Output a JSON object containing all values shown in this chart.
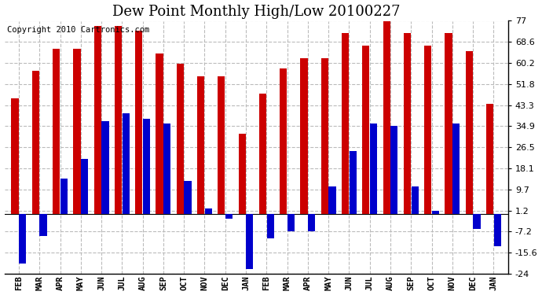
{
  "title": "Dew Point Monthly High/Low 20100227",
  "copyright": "Copyright 2010 Cartronics.com",
  "months": [
    "FEB",
    "MAR",
    "APR",
    "MAY",
    "JUN",
    "JUL",
    "AUG",
    "SEP",
    "OCT",
    "NOV",
    "DEC",
    "JAN",
    "FEB",
    "MAR",
    "APR",
    "MAY",
    "JUN",
    "JUL",
    "AUG",
    "SEP",
    "OCT",
    "NOV",
    "DEC",
    "JAN"
  ],
  "highs": [
    46,
    57,
    66,
    66,
    75,
    75,
    73,
    64,
    60,
    55,
    55,
    32,
    48,
    58,
    62,
    62,
    72,
    67,
    77,
    72,
    67,
    72,
    65,
    44
  ],
  "lows": [
    -20,
    -9,
    14,
    22,
    37,
    40,
    38,
    36,
    13,
    2,
    -2,
    -22,
    -10,
    -7,
    -7,
    11,
    25,
    36,
    35,
    11,
    1,
    36,
    -6,
    -13
  ],
  "high_color": "#cc0000",
  "low_color": "#0000cc",
  "background_color": "#ffffff",
  "grid_color": "#bbbbbb",
  "yticks": [
    -24.0,
    -15.6,
    -7.2,
    1.2,
    9.7,
    18.1,
    26.5,
    34.9,
    43.3,
    51.8,
    60.2,
    68.6,
    77.0
  ],
  "ylim": [
    -24.0,
    77.0
  ],
  "title_fontsize": 13,
  "copyright_fontsize": 7.5
}
